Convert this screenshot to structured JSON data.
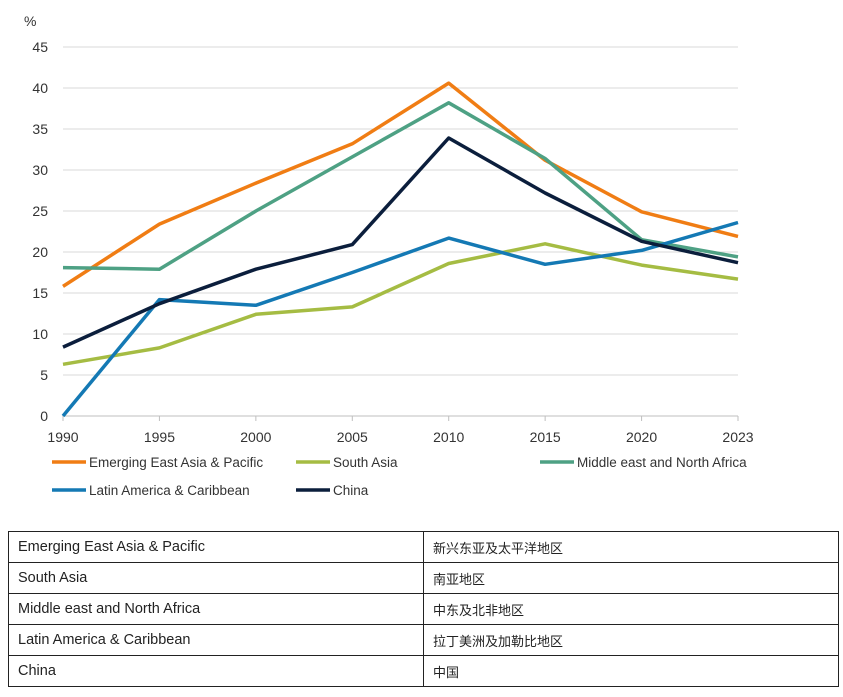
{
  "chart_data": {
    "type": "line",
    "ylabel": "%",
    "ylim": [
      0,
      45
    ],
    "yticks": [
      "0",
      "5",
      "10",
      "15",
      "20",
      "25",
      "30",
      "35",
      "40",
      "45"
    ],
    "x": [
      "1990",
      "1995",
      "2000",
      "2005",
      "2010",
      "2015",
      "2020",
      "2023"
    ],
    "grid": true,
    "legend_position": "bottom",
    "series": [
      {
        "name": "Emerging East Asia & Pacific",
        "color": "#F07D14",
        "values": [
          15.8,
          23.4,
          28.4,
          33.2,
          40.6,
          31.2,
          24.9,
          21.9
        ]
      },
      {
        "name": "South Asia",
        "color": "#A5BC43",
        "values": [
          6.3,
          8.3,
          12.4,
          13.3,
          18.6,
          21.0,
          18.4,
          16.7
        ]
      },
      {
        "name": "Middle east and North Africa",
        "color": "#4EA184",
        "values": [
          18.1,
          17.9,
          25.0,
          31.6,
          38.2,
          31.4,
          21.5,
          19.4
        ]
      },
      {
        "name": "Latin America & Caribbean",
        "color": "#1479B4",
        "values": [
          0.0,
          14.2,
          13.5,
          17.5,
          21.7,
          18.5,
          20.2,
          23.6
        ]
      },
      {
        "name": "China",
        "color": "#0B1E3C",
        "values": [
          8.4,
          13.7,
          17.9,
          20.9,
          33.9,
          27.2,
          21.3,
          18.7
        ]
      }
    ]
  },
  "translation_table": {
    "rows": [
      {
        "en": "Emerging East Asia & Pacific",
        "zh": "新兴东亚及太平洋地区"
      },
      {
        "en": "South Asia",
        "zh": "南亚地区"
      },
      {
        "en": "Middle east and North Africa",
        "zh": "中东及北非地区"
      },
      {
        "en": "Latin America & Caribbean",
        "zh": "拉丁美洲及加勒比地区"
      },
      {
        "en": "China",
        "zh": "中国"
      }
    ]
  }
}
